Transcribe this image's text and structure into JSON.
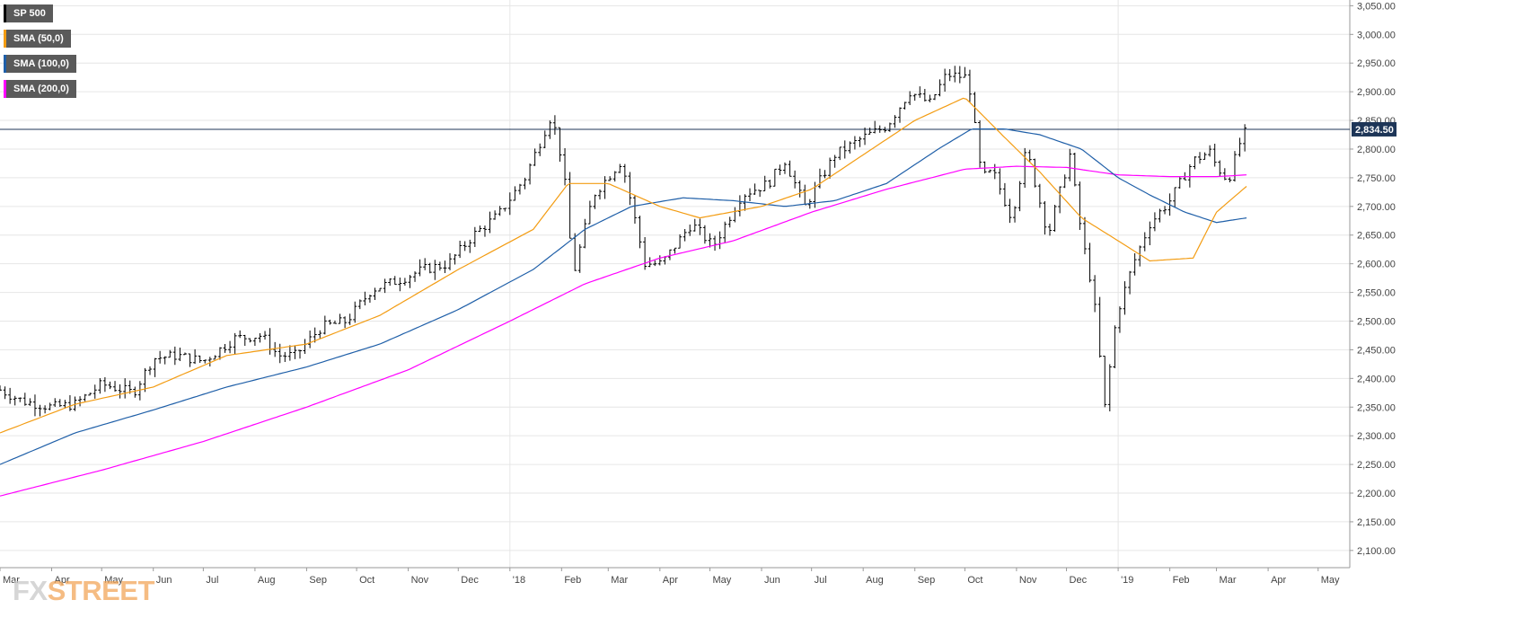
{
  "chart_data": {
    "type": "ohlc",
    "title": "",
    "instrument": "SP 500",
    "colors": {
      "price": "#000000",
      "sma50": "#f39c12",
      "sma100": "#1f5fa8",
      "sma200": "#ff00ff",
      "grid": "#e6e6e6",
      "current_line": "#1d3557",
      "label_bg": "#1d3557"
    },
    "legend": [
      {
        "label": "SP 500",
        "color": "#000000"
      },
      {
        "label": "SMA (50,0)",
        "color": "#f39c12"
      },
      {
        "label": "SMA (100,0)",
        "color": "#1f5fa8"
      },
      {
        "label": "SMA (200,0)",
        "color": "#ff00ff"
      }
    ],
    "y_axis": {
      "range": [
        2070,
        3060
      ],
      "ticks": [
        2100,
        2150,
        2200,
        2250,
        2300,
        2350,
        2400,
        2450,
        2500,
        2550,
        2600,
        2650,
        2700,
        2750,
        2800,
        2850,
        2900,
        2950,
        3000,
        3050
      ],
      "tick_labels": [
        "2,100.00",
        "2,150.00",
        "2,200.00",
        "2,250.00",
        "2,300.00",
        "2,350.00",
        "2,400.00",
        "2,450.00",
        "2,500.00",
        "2,550.00",
        "2,600.00",
        "2,650.00",
        "2,700.00",
        "2,750.00",
        "2,800.00",
        "2,850.00",
        "2,900.00",
        "2,950.00",
        "3,000.00",
        "3,050.00"
      ],
      "position": "right"
    },
    "x_axis": {
      "range": [
        "2017-03-01",
        "2019-05-20"
      ],
      "ticks": [
        "2017-03-01",
        "2017-04-01",
        "2017-05-01",
        "2017-06-01",
        "2017-07-01",
        "2017-08-01",
        "2017-09-01",
        "2017-10-01",
        "2017-11-01",
        "2017-12-01",
        "2018-01-01",
        "2018-02-01",
        "2018-03-01",
        "2018-04-01",
        "2018-05-01",
        "2018-06-01",
        "2018-07-01",
        "2018-08-01",
        "2018-09-01",
        "2018-10-01",
        "2018-11-01",
        "2018-12-01",
        "2019-01-01",
        "2019-02-01",
        "2019-03-01",
        "2019-04-01",
        "2019-05-01"
      ],
      "tick_labels": [
        "Mar",
        "Apr",
        "May",
        "Jun",
        "Jul",
        "Aug",
        "Sep",
        "Oct",
        "Nov",
        "Dec",
        "'18",
        "Feb",
        "Mar",
        "Apr",
        "May",
        "Jun",
        "Jul",
        "Aug",
        "Sep",
        "Oct",
        "Nov",
        "Dec",
        "'19",
        "Feb",
        "Mar",
        "Apr",
        "May"
      ]
    },
    "current_price": {
      "value": 2834.5,
      "label": "2,834.50"
    },
    "close_series": {
      "x": [
        "2017-03-01",
        "2017-03-15",
        "2017-04-01",
        "2017-04-15",
        "2017-05-01",
        "2017-05-20",
        "2017-06-01",
        "2017-06-15",
        "2017-07-01",
        "2017-07-20",
        "2017-08-05",
        "2017-08-15",
        "2017-08-25",
        "2017-09-10",
        "2017-09-25",
        "2017-10-10",
        "2017-10-25",
        "2017-11-10",
        "2017-11-25",
        "2017-12-10",
        "2017-12-25",
        "2018-01-10",
        "2018-01-26",
        "2018-02-02",
        "2018-02-08",
        "2018-02-20",
        "2018-03-09",
        "2018-03-23",
        "2018-04-02",
        "2018-04-20",
        "2018-05-03",
        "2018-05-20",
        "2018-06-05",
        "2018-06-15",
        "2018-06-27",
        "2018-07-15",
        "2018-08-01",
        "2018-08-15",
        "2018-08-29",
        "2018-09-10",
        "2018-09-20",
        "2018-10-03",
        "2018-10-11",
        "2018-10-18",
        "2018-10-29",
        "2018-11-07",
        "2018-11-20",
        "2018-12-03",
        "2018-12-10",
        "2018-12-17",
        "2018-12-24",
        "2018-12-31",
        "2019-01-10",
        "2019-01-20",
        "2019-02-01",
        "2019-02-15",
        "2019-02-25",
        "2019-03-01",
        "2019-03-08",
        "2019-03-15",
        "2019-03-19"
      ],
      "y": [
        2380,
        2360,
        2350,
        2355,
        2390,
        2375,
        2435,
        2440,
        2430,
        2470,
        2475,
        2440,
        2440,
        2490,
        2500,
        2555,
        2570,
        2590,
        2600,
        2650,
        2685,
        2750,
        2860,
        2770,
        2580,
        2720,
        2780,
        2600,
        2600,
        2670,
        2630,
        2720,
        2740,
        2780,
        2700,
        2790,
        2820,
        2840,
        2900,
        2880,
        2930,
        2925,
        2750,
        2760,
        2680,
        2800,
        2650,
        2790,
        2650,
        2550,
        2350,
        2510,
        2600,
        2670,
        2710,
        2780,
        2795,
        2770,
        2745,
        2810,
        2834
      ]
    },
    "sma50": {
      "x": [
        "2017-03-01",
        "2017-04-15",
        "2017-06-01",
        "2017-07-15",
        "2017-09-01",
        "2017-10-15",
        "2017-12-01",
        "2018-01-15",
        "2018-02-05",
        "2018-03-01",
        "2018-04-01",
        "2018-04-25",
        "2018-06-01",
        "2018-07-01",
        "2018-08-01",
        "2018-09-01",
        "2018-10-01",
        "2018-10-25",
        "2018-11-15",
        "2018-12-10",
        "2019-01-01",
        "2019-01-20",
        "2019-02-15",
        "2019-03-01",
        "2019-03-19"
      ],
      "y": [
        2305,
        2355,
        2385,
        2440,
        2460,
        2510,
        2590,
        2660,
        2740,
        2740,
        2700,
        2680,
        2700,
        2730,
        2790,
        2850,
        2890,
        2820,
        2760,
        2680,
        2640,
        2605,
        2610,
        2690,
        2735
      ]
    },
    "sma100": {
      "x": [
        "2017-03-01",
        "2017-04-15",
        "2017-06-01",
        "2017-07-15",
        "2017-09-01",
        "2017-10-15",
        "2017-12-01",
        "2018-01-15",
        "2018-02-15",
        "2018-03-15",
        "2018-04-15",
        "2018-05-15",
        "2018-06-15",
        "2018-07-15",
        "2018-08-15",
        "2018-09-15",
        "2018-10-05",
        "2018-10-25",
        "2018-11-15",
        "2018-12-10",
        "2019-01-01",
        "2019-01-20",
        "2019-02-10",
        "2019-03-01",
        "2019-03-19"
      ],
      "y": [
        2250,
        2305,
        2345,
        2385,
        2420,
        2460,
        2520,
        2590,
        2660,
        2700,
        2715,
        2710,
        2700,
        2710,
        2740,
        2800,
        2835,
        2835,
        2825,
        2800,
        2750,
        2720,
        2690,
        2672,
        2680
      ]
    },
    "sma200": {
      "x": [
        "2017-03-01",
        "2017-05-01",
        "2017-07-01",
        "2017-09-01",
        "2017-11-01",
        "2018-01-01",
        "2018-02-15",
        "2018-04-01",
        "2018-05-15",
        "2018-07-01",
        "2018-08-15",
        "2018-10-01",
        "2018-11-01",
        "2018-12-01",
        "2019-01-01",
        "2019-02-01",
        "2019-03-01",
        "2019-03-19"
      ],
      "y": [
        2195,
        2240,
        2290,
        2350,
        2415,
        2500,
        2565,
        2610,
        2640,
        2690,
        2730,
        2765,
        2770,
        2768,
        2755,
        2752,
        2752,
        2755
      ]
    }
  },
  "watermark": {
    "prefix": "FX",
    "suffix": "STREET"
  }
}
